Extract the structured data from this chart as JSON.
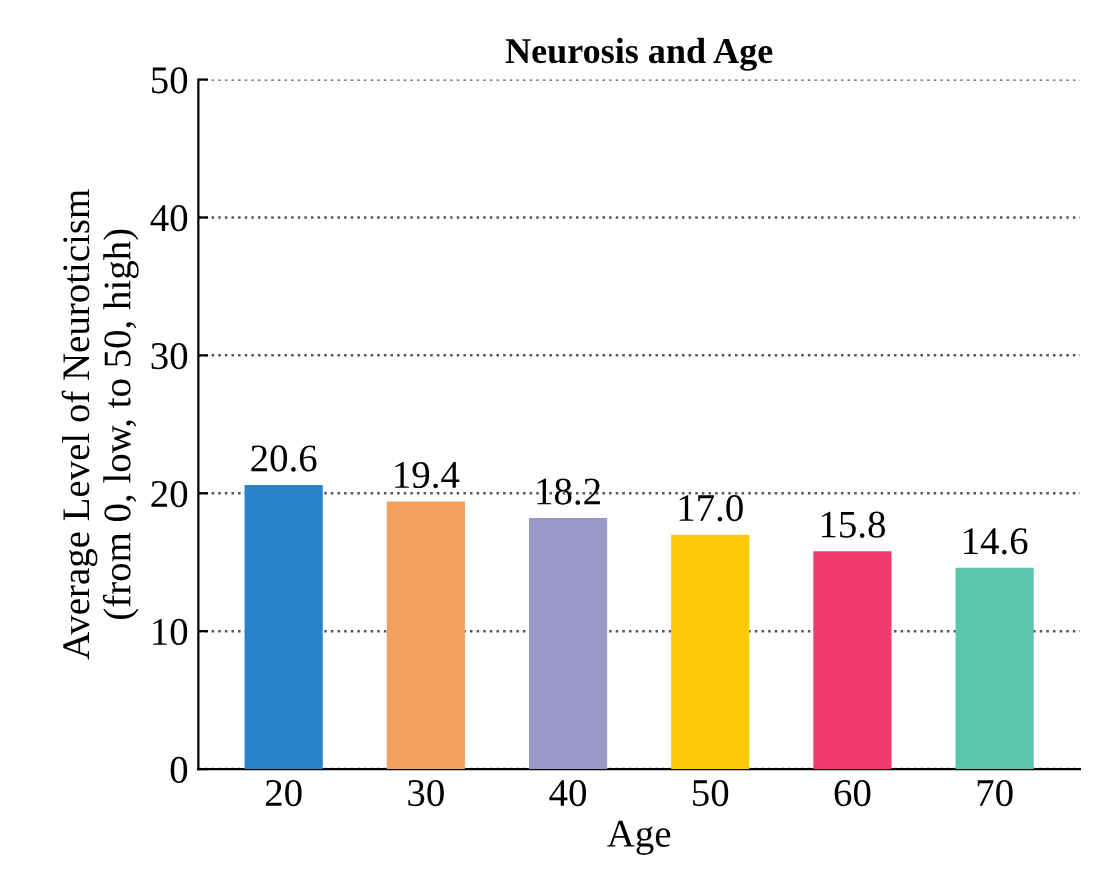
{
  "chart_data": {
    "type": "bar",
    "title": "Neurosis and Age",
    "xlabel": "Age",
    "ylabel": "Average Level of Neuroticism\n(from 0, low, to 50, high)",
    "categories": [
      "20",
      "30",
      "40",
      "50",
      "60",
      "70"
    ],
    "values": [
      20.6,
      19.4,
      18.2,
      17.0,
      15.8,
      14.6
    ],
    "value_labels": [
      "20.6",
      "19.4",
      "18.2",
      "17.0",
      "15.8",
      "14.6"
    ],
    "colors": [
      "#2a82c8",
      "#f5a05e",
      "#9b97c9",
      "#fcc90a",
      "#ef3b6e",
      "#5dc4ae"
    ],
    "ylim": [
      0,
      50
    ],
    "yticks": [
      0,
      10,
      20,
      30,
      40,
      50
    ],
    "grid": "y"
  }
}
